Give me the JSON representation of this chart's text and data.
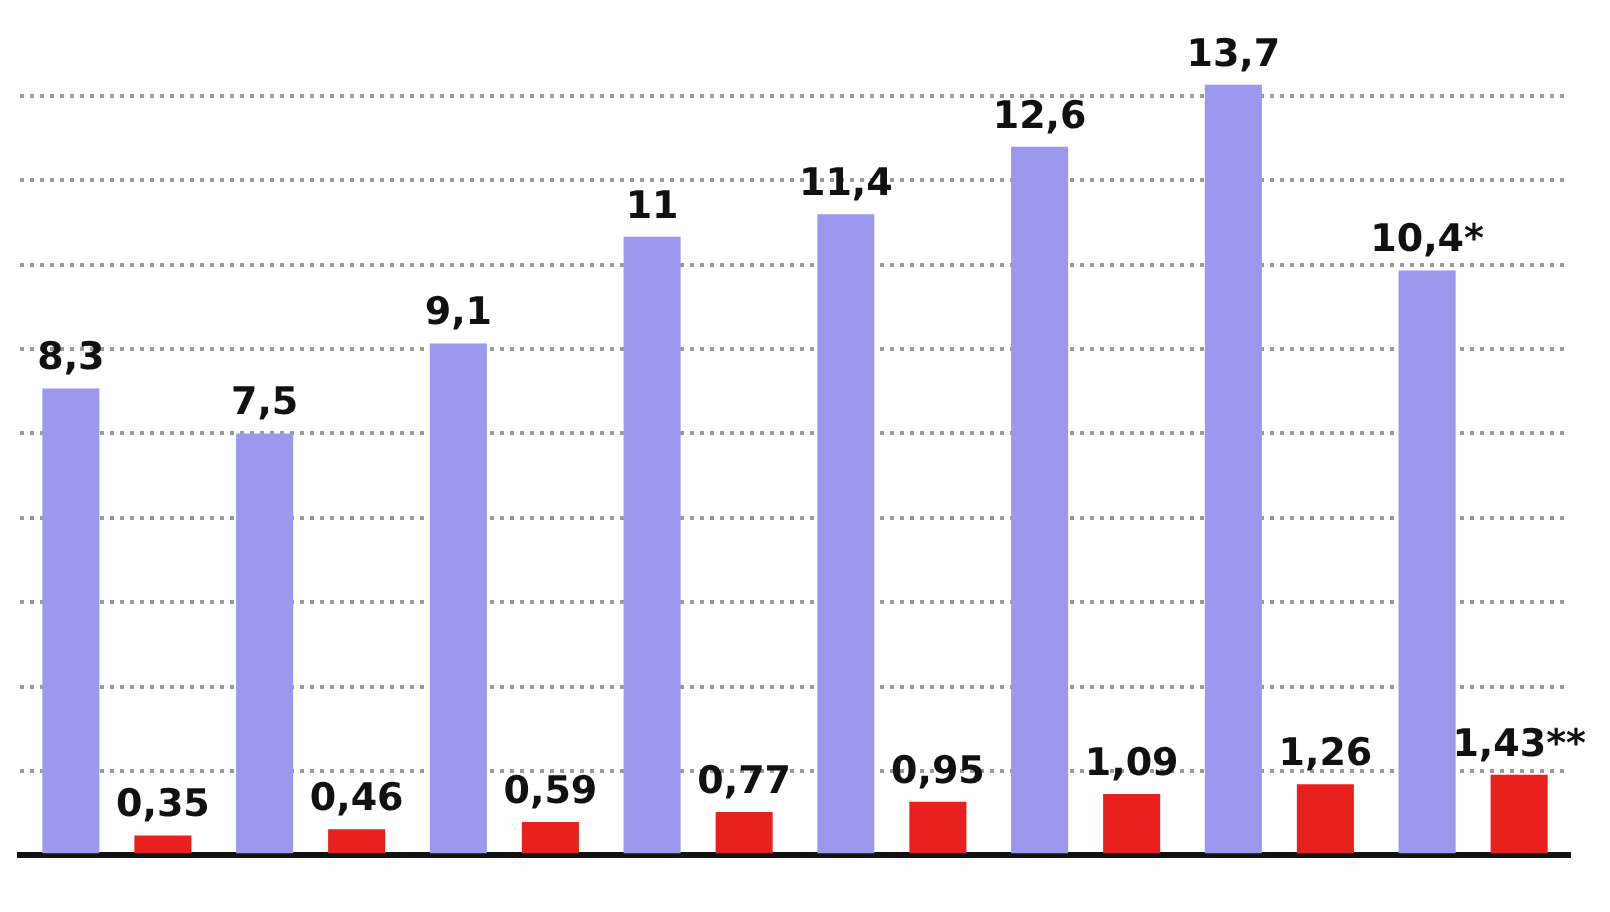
{
  "chart_data": {
    "type": "bar",
    "categories": [
      null,
      null,
      null,
      null,
      null,
      null,
      null,
      null
    ],
    "series": [
      {
        "color": "#9b98ee",
        "values": [
          8.3,
          7.5,
          9.1,
          11,
          11.4,
          12.6,
          13.7,
          10.4
        ],
        "value_labels": [
          "8,3",
          "7,5",
          "9,1",
          "11",
          "11,4",
          "12,6",
          "13,7",
          "10,4*"
        ]
      },
      {
        "color": "#e8211f",
        "values": [
          0.35,
          0.46,
          0.59,
          0.77,
          0.95,
          1.09,
          1.26,
          1.43
        ],
        "value_labels": [
          "0,35",
          "0,46",
          "0,59",
          "0,77",
          "0,95",
          "1,09",
          "1,26",
          "1,43**"
        ]
      }
    ],
    "yticks": [
      {
        "value": 0,
        "label": null
      },
      {
        "value": 1.5,
        "label": null
      },
      {
        "value": 3,
        "label": null
      },
      {
        "value": 4.5,
        "label": null
      },
      {
        "value": 6,
        "label": null
      },
      {
        "value": 7.5,
        "label": null
      },
      {
        "value": 9,
        "label": null
      },
      {
        "value": 10.5,
        "label": null
      },
      {
        "value": 12,
        "label": null
      },
      {
        "value": 13.5,
        "label": null
      }
    ],
    "grid": "y",
    "legend": false
  }
}
